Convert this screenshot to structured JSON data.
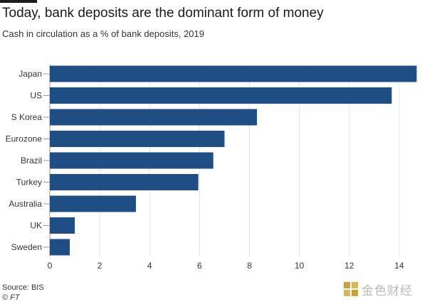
{
  "header": {
    "title": "Today, bank deposits are the dominant form of money",
    "subtitle": "Cash in circulation as a % of bank deposits, 2019"
  },
  "footer": {
    "source": "Source: BIS",
    "credit": "© FT"
  },
  "watermark": {
    "text": "金色财经",
    "icon": "gold-finance-logo-icon"
  },
  "colors": {
    "bar": "#1f4e85",
    "grid": "#e3e3e3",
    "axis": "#999999",
    "watermark": "#c9a13b"
  },
  "chart_data": {
    "type": "bar",
    "orientation": "horizontal",
    "title": "Today, bank deposits are the dominant form of money",
    "subtitle": "Cash in circulation as a % of bank deposits, 2019",
    "categories": [
      "Japan",
      "US",
      "S Korea",
      "Eurozone",
      "Brazil",
      "Turkey",
      "Australia",
      "UK",
      "Sweden"
    ],
    "values": [
      14.7,
      13.7,
      8.3,
      7.0,
      6.55,
      5.95,
      3.45,
      1.0,
      0.8
    ],
    "xlim": [
      0,
      14.8
    ],
    "xticks": [
      0,
      2,
      4,
      6,
      8,
      10,
      12,
      14
    ],
    "xlabel": "",
    "ylabel": "",
    "grid": "vertical"
  }
}
